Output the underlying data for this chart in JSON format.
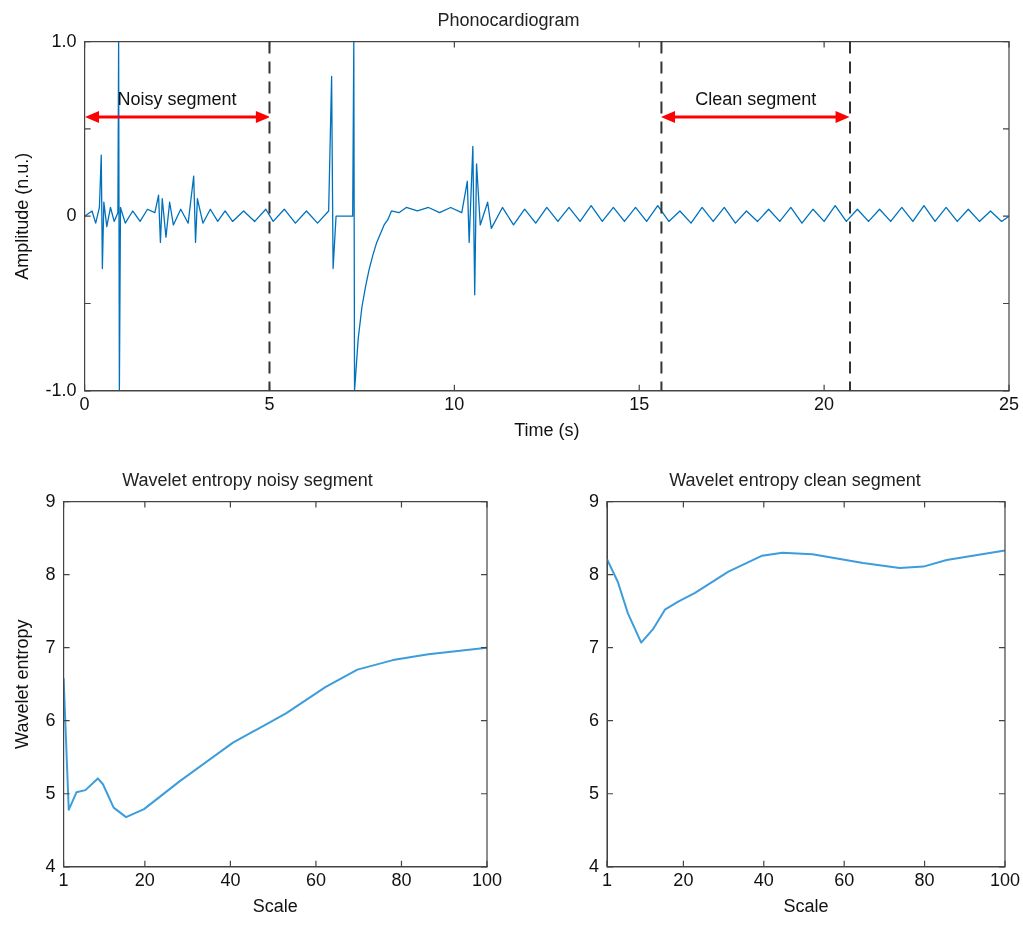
{
  "chart_data": [
    {
      "type": "line",
      "title": "Phonocardiogram",
      "xlabel": "Time (s)",
      "ylabel": "Amplitude (n.u.)",
      "xlim": [
        0,
        25
      ],
      "ylim": [
        -1,
        1
      ],
      "xticks": [
        0,
        5,
        10,
        15,
        20,
        25
      ],
      "yticks": [
        {
          "value": -1,
          "label": "-1.0"
        },
        {
          "value": -0.5,
          "label": null
        },
        0,
        {
          "value": 0.5,
          "label": null
        },
        {
          "value": 1,
          "label": "1.0"
        }
      ],
      "x": [
        0,
        0.2,
        0.3,
        0.4,
        0.45,
        0.48,
        0.52,
        0.6,
        0.7,
        0.8,
        0.9,
        0.92,
        0.94,
        0.97,
        1.1,
        1.3,
        1.5,
        1.7,
        1.9,
        2.0,
        2.05,
        2.1,
        2.2,
        2.3,
        2.4,
        2.6,
        2.8,
        2.95,
        3.0,
        3.05,
        3.2,
        3.4,
        3.6,
        3.8,
        4.0,
        4.3,
        4.6,
        4.9,
        5.1,
        5.4,
        5.7,
        6.0,
        6.3,
        6.6,
        6.68,
        6.72,
        6.8,
        7.0,
        7.25,
        7.28,
        7.3,
        7.35,
        7.4,
        7.5,
        7.6,
        7.7,
        7.8,
        7.9,
        8.0,
        8.1,
        8.2,
        8.3,
        8.5,
        8.7,
        9.0,
        9.3,
        9.6,
        9.9,
        10.2,
        10.35,
        10.4,
        10.5,
        10.55,
        10.6,
        10.7,
        10.9,
        11.0,
        11.3,
        11.6,
        11.9,
        12.2,
        12.5,
        12.8,
        13.1,
        13.4,
        13.7,
        14.0,
        14.3,
        14.6,
        14.9,
        15.2,
        15.5,
        15.8,
        16.1,
        16.4,
        16.7,
        17.0,
        17.3,
        17.6,
        17.9,
        18.2,
        18.5,
        18.8,
        19.1,
        19.4,
        19.7,
        20.0,
        20.3,
        20.6,
        20.9,
        21.2,
        21.5,
        21.8,
        22.1,
        22.4,
        22.7,
        23.0,
        23.3,
        23.6,
        23.9,
        24.2,
        24.5,
        24.8,
        25
      ],
      "series": [
        {
          "color": "#0072bd",
          "values": [
            0,
            0.03,
            -0.04,
            0.05,
            0.35,
            -0.3,
            0.08,
            -0.06,
            0.05,
            -0.03,
            0.02,
            1.0,
            -1.0,
            0.05,
            -0.04,
            0.03,
            -0.03,
            0.04,
            0.02,
            0.12,
            -0.15,
            0.1,
            -0.12,
            0.08,
            -0.05,
            0.04,
            -0.04,
            0.23,
            -0.15,
            0.1,
            -0.04,
            0.04,
            -0.03,
            0.03,
            -0.03,
            0.03,
            -0.03,
            0.04,
            -0.03,
            0.04,
            -0.04,
            0.03,
            -0.04,
            0.03,
            0.8,
            -0.3,
            0,
            0,
            0,
            1.0,
            -1.0,
            -0.85,
            -0.7,
            -0.52,
            -0.4,
            -0.3,
            -0.22,
            -0.15,
            -0.1,
            -0.05,
            -0.02,
            0.03,
            0.02,
            0.05,
            0.03,
            0.05,
            0.02,
            0.05,
            0.02,
            0.2,
            -0.15,
            0.4,
            -0.45,
            0.3,
            -0.05,
            0.08,
            -0.07,
            0.05,
            -0.05,
            0.04,
            -0.04,
            0.05,
            -0.03,
            0.05,
            -0.03,
            0.06,
            -0.03,
            0.05,
            -0.03,
            0.05,
            -0.03,
            0.06,
            -0.03,
            0.03,
            -0.04,
            0.05,
            -0.03,
            0.05,
            -0.04,
            0.03,
            -0.03,
            0.04,
            -0.03,
            0.05,
            -0.04,
            0.04,
            -0.03,
            0.06,
            -0.03,
            0.04,
            -0.03,
            0.04,
            -0.03,
            0.05,
            -0.03,
            0.06,
            -0.03,
            0.05,
            -0.03,
            0.04,
            -0.03,
            0.03,
            -0.03,
            0
          ]
        }
      ],
      "ref_lines": [
        {
          "axis": "x",
          "value": 5,
          "color": "#333333",
          "line_style": "dashed"
        },
        {
          "axis": "x",
          "value": 15.6,
          "color": "#333333",
          "line_style": "dashed"
        },
        {
          "axis": "x",
          "value": 20.7,
          "color": "#333333",
          "line_style": "dashed"
        }
      ],
      "annotations": [
        "Noisy segment",
        "Clean segment"
      ]
    },
    {
      "type": "line",
      "title": "Wavelet entropy noisy segment",
      "xlabel": "Scale",
      "ylabel": "Wavelet entropy",
      "xlim": [
        1,
        100
      ],
      "ylim": [
        4,
        9
      ],
      "xticks": [
        1,
        20,
        40,
        60,
        80,
        100
      ],
      "yticks": [
        4,
        5,
        6,
        7,
        8,
        9
      ],
      "x": [
        1,
        2.2,
        4,
        6.1,
        9,
        10.2,
        12.7,
        15.6,
        19.8,
        28.1,
        40.6,
        53,
        62.2,
        69.7,
        78,
        86.3,
        100
      ],
      "series": [
        {
          "color": "#3d9ddb",
          "values": [
            6.58,
            4.78,
            5.02,
            5.05,
            5.21,
            5.13,
            4.81,
            4.68,
            4.79,
            5.17,
            5.7,
            6.1,
            6.46,
            6.7,
            6.83,
            6.91,
            7.0
          ]
        }
      ]
    },
    {
      "type": "line",
      "title": "Wavelet entropy clean segment",
      "xlabel": "Scale",
      "xlim": [
        1,
        100
      ],
      "ylim": [
        4,
        9
      ],
      "xticks": [
        1,
        20,
        40,
        60,
        80,
        100
      ],
      "yticks": [
        4,
        5,
        6,
        7,
        8,
        9
      ],
      "x": [
        1,
        3.7,
        6.2,
        9.5,
        12.4,
        15.4,
        18.7,
        22.9,
        31.2,
        39.6,
        44.6,
        52.1,
        64.7,
        73.8,
        79.7,
        85.5,
        100
      ],
      "series": [
        {
          "color": "#3d9ddb",
          "values": [
            8.21,
            7.9,
            7.47,
            7.07,
            7.25,
            7.52,
            7.63,
            7.75,
            8.04,
            8.26,
            8.3,
            8.28,
            8.16,
            8.09,
            8.11,
            8.2,
            8.33
          ]
        }
      ]
    }
  ]
}
